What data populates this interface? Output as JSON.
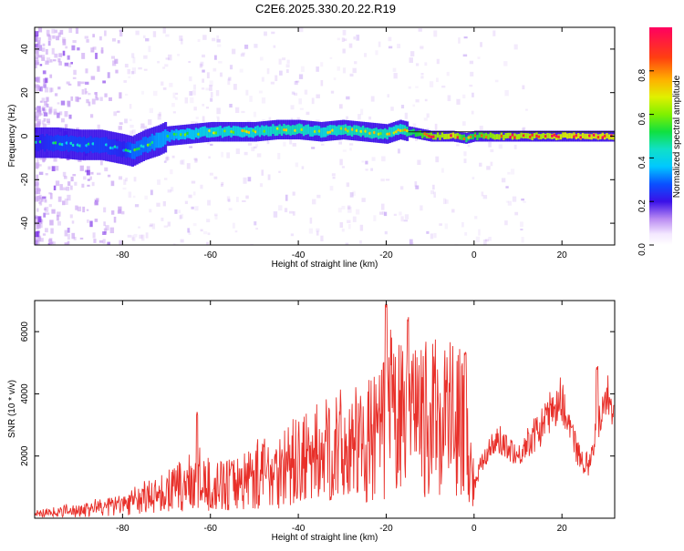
{
  "title": "C2E6.2025.330.20.22.R19",
  "colors": {
    "snr_line": "#e8302a",
    "ridge_high": "#ff3a20",
    "ridge_mid": "#22e0d0",
    "ridge_low": "#5a18e8",
    "scatter": "#c9a2f2"
  },
  "chart_data": [
    {
      "type": "heatmap",
      "title": "",
      "xlabel": "Height of straight line (km)",
      "ylabel": "Frequency (Hz)",
      "xlim": [
        -100,
        32
      ],
      "ylim": [
        -50,
        50
      ],
      "x_ticks": [
        -80,
        -60,
        -40,
        -20,
        0,
        20
      ],
      "y_ticks": [
        -40,
        -20,
        0,
        20,
        40
      ],
      "grid": false,
      "ridge": {
        "x": [
          -99,
          -95,
          -90,
          -85,
          -80,
          -78,
          -75,
          -72,
          -70,
          -65,
          -60,
          -55,
          -50,
          -45,
          -40,
          -35,
          -30,
          -25,
          -20,
          -17,
          -15,
          -10,
          -5,
          -2,
          0,
          5,
          10,
          15,
          20,
          25,
          32
        ],
        "y": [
          -3,
          -3,
          -4,
          -4,
          -6,
          -7,
          -4,
          -2,
          0,
          1,
          2,
          2,
          2,
          3,
          3,
          2,
          3,
          2,
          1,
          3,
          2,
          0,
          0,
          -1,
          0,
          0,
          0,
          0,
          0,
          0,
          0
        ],
        "amplitude": [
          0.3,
          0.35,
          0.35,
          0.35,
          0.3,
          0.4,
          0.4,
          0.45,
          0.45,
          0.5,
          0.55,
          0.55,
          0.55,
          0.6,
          0.6,
          0.55,
          0.6,
          0.6,
          0.6,
          0.55,
          0.65,
          0.8,
          0.9,
          0.65,
          0.7,
          0.85,
          0.85,
          0.85,
          0.9,
          0.9,
          0.9
        ]
      },
      "colorbar": {
        "label": "Normalized spectral amplitude",
        "range": [
          0,
          1
        ],
        "ticks": [
          "0.0",
          "0.2",
          "0.4",
          "0.6",
          "0.8"
        ]
      }
    },
    {
      "type": "line",
      "title": "",
      "xlabel": "Height of straight line (km)",
      "ylabel": "SNR (10 * v/v)",
      "xlim": [
        -100,
        32
      ],
      "ylim": [
        0,
        7000
      ],
      "x_ticks": [
        -80,
        -60,
        -40,
        -20,
        0,
        20
      ],
      "y_ticks": [
        2000,
        4000,
        6000
      ],
      "grid": false,
      "series": [
        {
          "values_x": [
            -100,
            -95,
            -90,
            -85,
            -80,
            -75,
            -70,
            -65,
            -63,
            -60,
            -55,
            -50,
            -45,
            -40,
            -35,
            -30,
            -25,
            -22,
            -20,
            -19,
            -17,
            -15,
            -12,
            -10,
            -8,
            -6,
            -5,
            -3,
            -2,
            -1,
            0,
            2,
            4,
            6,
            8,
            10,
            12,
            14,
            16,
            18,
            20,
            22,
            24,
            26,
            28,
            30,
            32
          ],
          "values_y": [
            150,
            200,
            280,
            350,
            450,
            650,
            850,
            1100,
            1300,
            1000,
            1100,
            1400,
            1600,
            1800,
            2100,
            2300,
            2400,
            2600,
            3000,
            3400,
            3200,
            3000,
            3100,
            3200,
            3300,
            3400,
            3300,
            3000,
            2800,
            2000,
            1000,
            2000,
            2300,
            2500,
            2300,
            2000,
            2400,
            2700,
            3100,
            3600,
            3800,
            2800,
            2000,
            1700,
            3000,
            4000,
            3600
          ]
        }
      ],
      "peaks": [
        {
          "x": -63,
          "y": 3450
        },
        {
          "x": -20,
          "y": 6900
        },
        {
          "x": -15,
          "y": 6500
        },
        {
          "x": -2,
          "y": 5400
        },
        {
          "x": 28,
          "y": 4900
        }
      ]
    }
  ]
}
